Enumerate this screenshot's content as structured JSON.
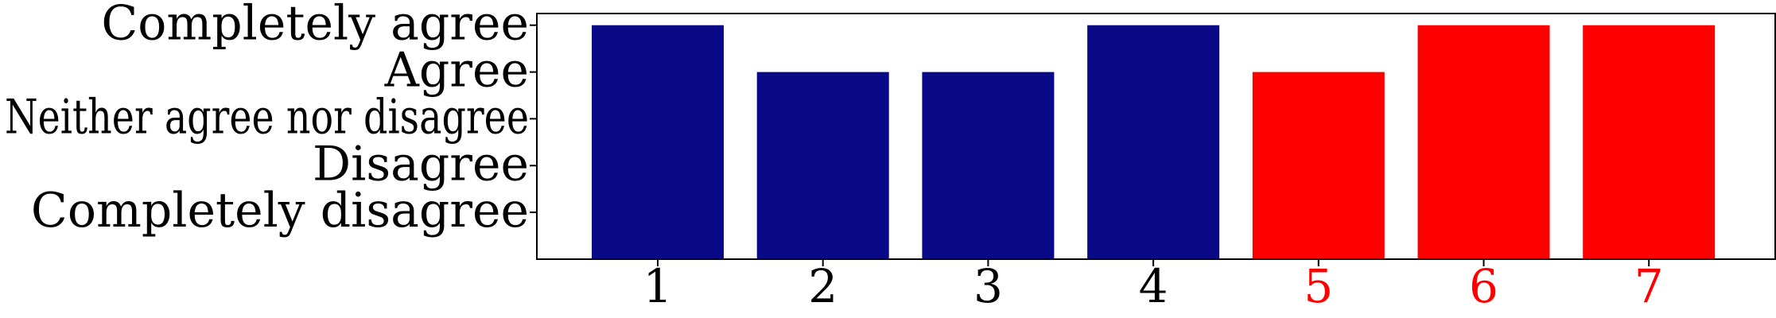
{
  "chart_data": {
    "type": "bar",
    "categories": [
      "1",
      "2",
      "3",
      "4",
      "5",
      "6",
      "7"
    ],
    "values": [
      5,
      4,
      4,
      5,
      4,
      5,
      5
    ],
    "bar_colors": [
      "#0a0a87",
      "#0a0a87",
      "#0a0a87",
      "#0a0a87",
      "#ff0000",
      "#ff0000",
      "#ff0000"
    ],
    "xtick_colors": [
      "#000000",
      "#000000",
      "#000000",
      "#000000",
      "#ff0000",
      "#ff0000",
      "#ff0000"
    ],
    "y_tick_values": [
      1,
      2,
      3,
      4,
      5
    ],
    "y_tick_labels": [
      "Completely disagree",
      "Disagree",
      "Neither agree nor disagree",
      "Agree",
      "Completely agree"
    ],
    "ylim": [
      0,
      5.25
    ],
    "grid": false,
    "title": "",
    "xlabel": "",
    "ylabel": ""
  }
}
